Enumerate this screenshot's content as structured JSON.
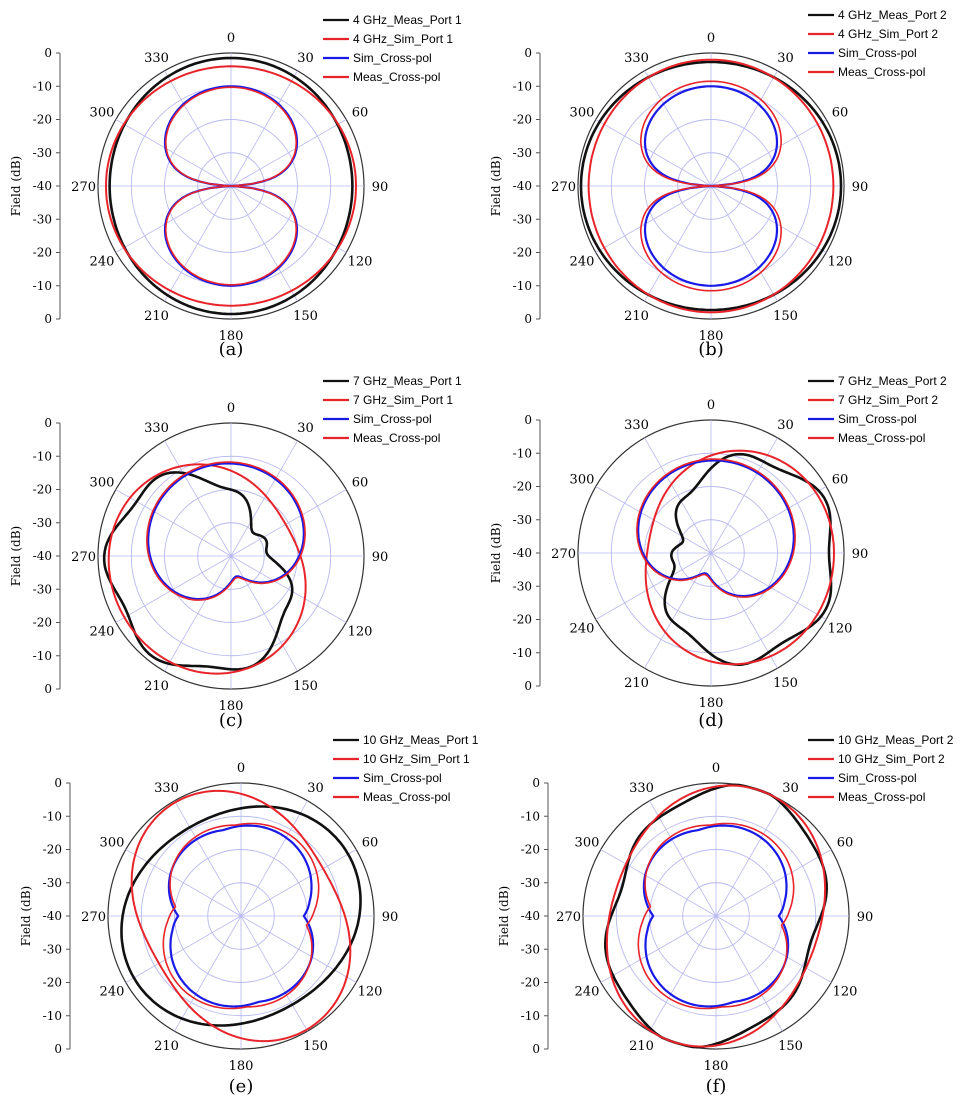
{
  "figure": {
    "ylabel": "Field (dB)",
    "radial_ticks": [
      "0",
      "-10",
      "-20",
      "-30",
      "-40",
      "-30",
      "-20",
      "-10",
      "0"
    ],
    "angle_labels": [
      "0",
      "30",
      "60",
      "90",
      "120",
      "150",
      "180",
      "210",
      "240",
      "270",
      "300",
      "330"
    ],
    "colors": {
      "meas_copol": "#111111",
      "sim_copol": "#e8242b",
      "sim_crosspol": "#1a1ae6",
      "meas_crosspol": "#e8242b",
      "grid": "#b8b8f0",
      "axis": "#555555"
    }
  },
  "chart_data": [
    {
      "type": "polar-line",
      "caption": "(a)",
      "ylabel": "Field (dB)",
      "rlim": [
        -40,
        0
      ],
      "angle_unit": "deg",
      "theta_ticks": [
        0,
        30,
        60,
        90,
        120,
        150,
        180,
        210,
        240,
        270,
        300,
        330
      ],
      "series": [
        {
          "name": "4 GHz_Meas_Port 1",
          "style": "copol",
          "values_approx": "omnidirectional, approx -1 to -3 dB over full circle"
        },
        {
          "name": "4 GHz_Sim_Port 1",
          "style": "copol",
          "values_approx": "omnidirectional, approx -2 to -4 dB over full circle"
        },
        {
          "name": "Sim_Cross-pol",
          "style": "figure-eight",
          "peak_db": -10,
          "null_deg": [
            90,
            270
          ]
        },
        {
          "name": "Meas_Cross-pol",
          "style": "figure-eight",
          "peak_db": -10,
          "null_deg": [
            90,
            270
          ]
        }
      ]
    },
    {
      "type": "polar-line",
      "caption": "(b)",
      "ylabel": "Field (dB)",
      "rlim": [
        -40,
        0
      ],
      "angle_unit": "deg",
      "theta_ticks": [
        0,
        30,
        60,
        90,
        120,
        150,
        180,
        210,
        240,
        270,
        300,
        330
      ],
      "series": [
        {
          "name": "4 GHz_Meas_Port 2",
          "style": "copol",
          "values_approx": "omnidirectional, approx -1 to -2 dB"
        },
        {
          "name": "4 GHz_Sim_Port 2",
          "style": "copol",
          "values_approx": "omnidirectional, approx -2 to -3 dB"
        },
        {
          "name": "Sim_Cross-pol",
          "style": "figure-eight",
          "peak_db": -10,
          "null_deg": [
            90,
            270
          ]
        },
        {
          "name": "Meas_Cross-pol",
          "style": "figure-eight",
          "peak_db": -8,
          "null_deg": [
            90,
            270
          ]
        }
      ]
    },
    {
      "type": "polar-line",
      "caption": "(c)",
      "ylabel": "Field (dB)",
      "rlim": [
        -40,
        0
      ],
      "angle_unit": "deg",
      "theta_ticks": [
        0,
        30,
        60,
        90,
        120,
        150,
        180,
        210,
        240,
        270,
        300,
        330
      ],
      "series": [
        {
          "name": "7 GHz_Meas_Port 1",
          "style": "copol-tilted-left",
          "values_approx": "max approx -3 dB around 300 to 210 deg, deep null near 90 deg"
        },
        {
          "name": "7 GHz_Sim_Port 1",
          "style": "copol-tilted-left",
          "values_approx": "max approx -3 dB, min approx -22 dB near 90 deg"
        },
        {
          "name": "Sim_Cross-pol",
          "style": "cardioid",
          "peak_db": -13
        },
        {
          "name": "Meas_Cross-pol",
          "style": "cardioid",
          "peak_db": -13
        }
      ]
    },
    {
      "type": "polar-line",
      "caption": "(d)",
      "ylabel": "Field (dB)",
      "rlim": [
        -40,
        0
      ],
      "angle_unit": "deg",
      "theta_ticks": [
        0,
        30,
        60,
        90,
        120,
        150,
        180,
        210,
        240,
        270,
        300,
        330
      ],
      "series": [
        {
          "name": "7 GHz_Meas_Port 2",
          "style": "copol-tilted-right",
          "values_approx": "max approx -3 dB around 60 to 150 deg, dip near 270 deg"
        },
        {
          "name": "7 GHz_Sim_Port 2",
          "style": "copol-tilted-right",
          "values_approx": "max approx -3 dB, min approx -22 dB near 270 deg"
        },
        {
          "name": "Sim_Cross-pol",
          "style": "cardioid",
          "peak_db": -13
        },
        {
          "name": "Meas_Cross-pol",
          "style": "cardioid",
          "peak_db": -13
        }
      ]
    },
    {
      "type": "polar-line",
      "caption": "(e)",
      "ylabel": "Field (dB)",
      "rlim": [
        -40,
        0
      ],
      "angle_unit": "deg",
      "theta_ticks": [
        0,
        30,
        60,
        90,
        120,
        150,
        180,
        210,
        240,
        270,
        300,
        330
      ],
      "series": [
        {
          "name": "10 GHz_Meas_Port 1",
          "style": "copol",
          "values_approx": "approx -3 to -9 dB, rotated ellipse"
        },
        {
          "name": "10 GHz_Sim_Port 1",
          "style": "copol",
          "values_approx": "approx -2 to -12 dB, rotated ellipse"
        },
        {
          "name": "Sim_Cross-pol",
          "style": "four-lobe",
          "peak_db": -12
        },
        {
          "name": "Meas_Cross-pol",
          "style": "four-lobe",
          "peak_db": -11
        }
      ]
    },
    {
      "type": "polar-line",
      "caption": "(f)",
      "ylabel": "Field (dB)",
      "rlim": [
        -40,
        0
      ],
      "angle_unit": "deg",
      "theta_ticks": [
        0,
        30,
        60,
        90,
        120,
        150,
        180,
        210,
        240,
        270,
        300,
        330
      ],
      "series": [
        {
          "name": "10 GHz_Meas_Port 2",
          "style": "copol",
          "values_approx": "approx -1 to -10 dB"
        },
        {
          "name": "10 GHz_Sim_Port 2",
          "style": "copol",
          "values_approx": "approx -1 to -10 dB"
        },
        {
          "name": "Sim_Cross-pol",
          "style": "four-lobe",
          "peak_db": -12
        },
        {
          "name": "Meas_Cross-pol",
          "style": "four-lobe",
          "peak_db": -11
        }
      ]
    }
  ]
}
